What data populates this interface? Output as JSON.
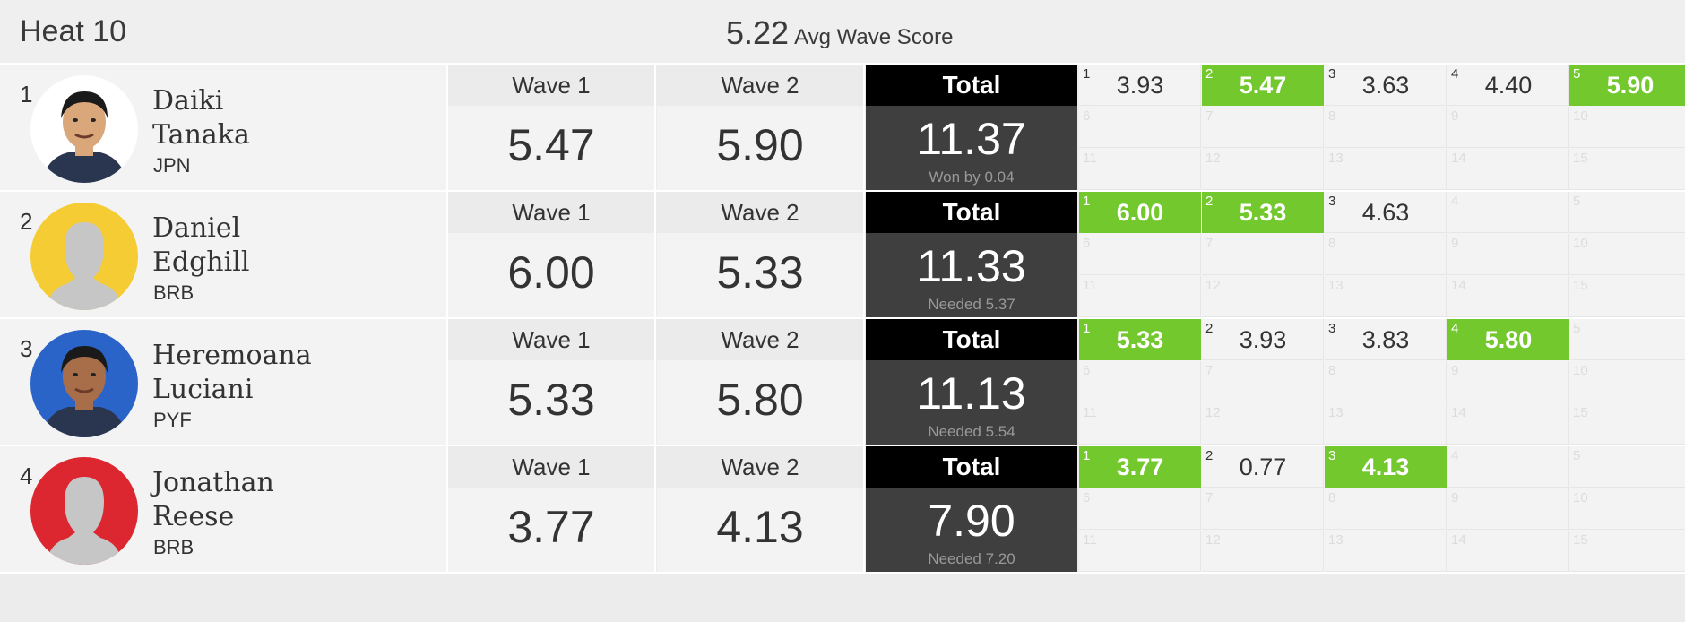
{
  "header": {
    "heat_title": "Heat 10",
    "avg_score": "5.22",
    "avg_label": "Avg Wave Score"
  },
  "colors": {
    "counted_wave": "#72c82c",
    "total_header": "#000000",
    "total_body": "#3f3f3f"
  },
  "labels": {
    "wave1": "Wave 1",
    "wave2": "Wave 2",
    "total": "Total"
  },
  "athletes": [
    {
      "place": "1",
      "first": "Daiki",
      "last": "Tanaka",
      "country": "JPN",
      "avatar": "athlete-photo-icon",
      "wave1": "5.47",
      "wave2": "5.90",
      "total": "11.37",
      "note": "Won by 0.04",
      "waves": [
        {
          "n": "1",
          "score": "3.93",
          "counted": false
        },
        {
          "n": "2",
          "score": "5.47",
          "counted": true
        },
        {
          "n": "3",
          "score": "3.63",
          "counted": false
        },
        {
          "n": "4",
          "score": "4.40",
          "counted": false
        },
        {
          "n": "5",
          "score": "5.90",
          "counted": true
        },
        {
          "n": "6",
          "score": "",
          "counted": false
        },
        {
          "n": "7",
          "score": "",
          "counted": false
        },
        {
          "n": "8",
          "score": "",
          "counted": false
        },
        {
          "n": "9",
          "score": "",
          "counted": false
        },
        {
          "n": "10",
          "score": "",
          "counted": false
        },
        {
          "n": "11",
          "score": "",
          "counted": false
        },
        {
          "n": "12",
          "score": "",
          "counted": false
        },
        {
          "n": "13",
          "score": "",
          "counted": false
        },
        {
          "n": "14",
          "score": "",
          "counted": false
        },
        {
          "n": "15",
          "score": "",
          "counted": false
        }
      ]
    },
    {
      "place": "2",
      "first": "Daniel",
      "last": "Edghill",
      "country": "BRB",
      "avatar": "avatar-placeholder-icon",
      "wave1": "6.00",
      "wave2": "5.33",
      "total": "11.33",
      "note": "Needed 5.37",
      "waves": [
        {
          "n": "1",
          "score": "6.00",
          "counted": true
        },
        {
          "n": "2",
          "score": "5.33",
          "counted": true
        },
        {
          "n": "3",
          "score": "4.63",
          "counted": false
        },
        {
          "n": "4",
          "score": "",
          "counted": false
        },
        {
          "n": "5",
          "score": "",
          "counted": false
        },
        {
          "n": "6",
          "score": "",
          "counted": false
        },
        {
          "n": "7",
          "score": "",
          "counted": false
        },
        {
          "n": "8",
          "score": "",
          "counted": false
        },
        {
          "n": "9",
          "score": "",
          "counted": false
        },
        {
          "n": "10",
          "score": "",
          "counted": false
        },
        {
          "n": "11",
          "score": "",
          "counted": false
        },
        {
          "n": "12",
          "score": "",
          "counted": false
        },
        {
          "n": "13",
          "score": "",
          "counted": false
        },
        {
          "n": "14",
          "score": "",
          "counted": false
        },
        {
          "n": "15",
          "score": "",
          "counted": false
        }
      ]
    },
    {
      "place": "3",
      "first": "Heremoana",
      "last": "Luciani",
      "country": "PYF",
      "avatar": "athlete-photo-icon",
      "wave1": "5.33",
      "wave2": "5.80",
      "total": "11.13",
      "note": "Needed 5.54",
      "waves": [
        {
          "n": "1",
          "score": "5.33",
          "counted": true
        },
        {
          "n": "2",
          "score": "3.93",
          "counted": false
        },
        {
          "n": "3",
          "score": "3.83",
          "counted": false
        },
        {
          "n": "4",
          "score": "5.80",
          "counted": true
        },
        {
          "n": "5",
          "score": "",
          "counted": false
        },
        {
          "n": "6",
          "score": "",
          "counted": false
        },
        {
          "n": "7",
          "score": "",
          "counted": false
        },
        {
          "n": "8",
          "score": "",
          "counted": false
        },
        {
          "n": "9",
          "score": "",
          "counted": false
        },
        {
          "n": "10",
          "score": "",
          "counted": false
        },
        {
          "n": "11",
          "score": "",
          "counted": false
        },
        {
          "n": "12",
          "score": "",
          "counted": false
        },
        {
          "n": "13",
          "score": "",
          "counted": false
        },
        {
          "n": "14",
          "score": "",
          "counted": false
        },
        {
          "n": "15",
          "score": "",
          "counted": false
        }
      ]
    },
    {
      "place": "4",
      "first": "Jonathan",
      "last": "Reese",
      "country": "BRB",
      "avatar": "avatar-placeholder-icon",
      "wave1": "3.77",
      "wave2": "4.13",
      "total": "7.90",
      "note": "Needed 7.20",
      "waves": [
        {
          "n": "1",
          "score": "3.77",
          "counted": true
        },
        {
          "n": "2",
          "score": "0.77",
          "counted": false
        },
        {
          "n": "3",
          "score": "4.13",
          "counted": true
        },
        {
          "n": "4",
          "score": "",
          "counted": false
        },
        {
          "n": "5",
          "score": "",
          "counted": false
        },
        {
          "n": "6",
          "score": "",
          "counted": false
        },
        {
          "n": "7",
          "score": "",
          "counted": false
        },
        {
          "n": "8",
          "score": "",
          "counted": false
        },
        {
          "n": "9",
          "score": "",
          "counted": false
        },
        {
          "n": "10",
          "score": "",
          "counted": false
        },
        {
          "n": "11",
          "score": "",
          "counted": false
        },
        {
          "n": "12",
          "score": "",
          "counted": false
        },
        {
          "n": "13",
          "score": "",
          "counted": false
        },
        {
          "n": "14",
          "score": "",
          "counted": false
        },
        {
          "n": "15",
          "score": "",
          "counted": false
        }
      ]
    }
  ]
}
